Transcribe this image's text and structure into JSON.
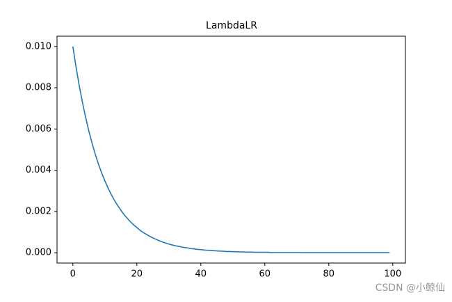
{
  "chart_data": {
    "type": "line",
    "title": "LambdaLR",
    "x": [
      0,
      1,
      2,
      3,
      4,
      5,
      6,
      7,
      8,
      9,
      10,
      11,
      12,
      13,
      14,
      15,
      16,
      17,
      18,
      19,
      20,
      21,
      22,
      23,
      24,
      25,
      26,
      27,
      28,
      29,
      30,
      31,
      32,
      33,
      34,
      35,
      36,
      37,
      38,
      39,
      40,
      41,
      42,
      43,
      44,
      45,
      46,
      47,
      48,
      49,
      50,
      51,
      52,
      53,
      54,
      55,
      56,
      57,
      58,
      59,
      60,
      61,
      62,
      63,
      64,
      65,
      66,
      67,
      68,
      69,
      70,
      71,
      72,
      73,
      74,
      75,
      76,
      77,
      78,
      79,
      80,
      81,
      82,
      83,
      84,
      85,
      86,
      87,
      88,
      89,
      90,
      91,
      92,
      93,
      94,
      95,
      96,
      97,
      98,
      99
    ],
    "series": [
      {
        "color": "#1f77b4",
        "values": [
          0.01,
          0.009,
          0.0081,
          0.00729,
          0.00656,
          0.0059,
          0.00531,
          0.00478,
          0.0043,
          0.00387,
          0.00349,
          0.00314,
          0.00282,
          0.00254,
          0.00229,
          0.00206,
          0.00185,
          0.00167,
          0.0015,
          0.00135,
          0.00122,
          0.00109,
          0.00098,
          0.00089,
          0.0008,
          0.00072,
          0.00065,
          0.00058,
          0.00052,
          0.00047,
          0.00042,
          0.00038,
          0.00034,
          0.00031,
          0.00028,
          0.00025,
          0.00023,
          0.0002,
          0.00018,
          0.00016,
          0.00015,
          0.00013,
          0.00012,
          0.00011,
          0.0001,
          9e-05,
          8e-05,
          7e-05,
          6e-05,
          6e-05,
          5e-05,
          5e-05,
          4e-05,
          4e-05,
          3e-05,
          3e-05,
          3e-05,
          2e-05,
          2e-05,
          2e-05,
          2e-05,
          2e-05,
          1e-05,
          1e-05,
          1e-05,
          1e-05,
          1e-05,
          1e-05,
          1e-05,
          1e-05,
          1e-05,
          1e-05,
          0,
          0,
          0,
          0,
          0,
          0,
          0,
          0,
          0,
          0,
          0,
          0,
          0,
          0,
          0,
          0,
          0,
          0,
          0,
          0,
          0,
          0,
          0,
          0,
          0,
          0,
          0,
          0
        ]
      }
    ],
    "xlim": [
      -4.95,
      103.95
    ],
    "xticks": [
      0,
      20,
      40,
      60,
      80,
      100
    ],
    "ylim": [
      -0.0005,
      0.0105
    ],
    "yticks": [
      {
        "value": 0,
        "label": "0.000"
      },
      {
        "value": 0.002,
        "label": "0.002"
      },
      {
        "value": 0.004,
        "label": "0.004"
      },
      {
        "value": 0.006,
        "label": "0.006"
      },
      {
        "value": 0.008,
        "label": "0.008"
      },
      {
        "value": 0.01,
        "label": "0.010"
      }
    ],
    "watermark": "CSDN @小鲸仙"
  }
}
